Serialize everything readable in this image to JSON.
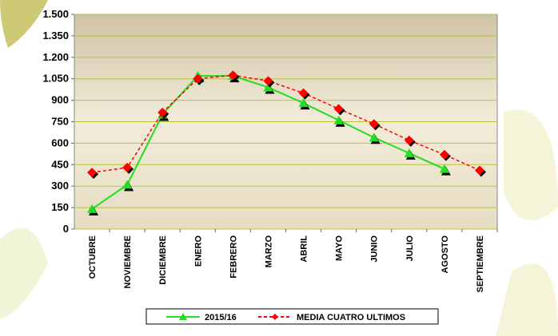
{
  "chart_data": {
    "type": "line",
    "categories": [
      "OCTUBRE",
      "NOVIEMBRE",
      "DICIEMBRE",
      "ENERO",
      "FEBRERO",
      "MARZO",
      "ABRIL",
      "MAYO",
      "JUNIO",
      "JULIO",
      "AGOSTO",
      "SEPTIEMBRE"
    ],
    "series": [
      {
        "name": "2015/16",
        "color": "#22dd22",
        "marker": "triangle",
        "dashed": false,
        "values": [
          140,
          310,
          800,
          1070,
          1070,
          990,
          880,
          760,
          640,
          530,
          420,
          null
        ]
      },
      {
        "name": "MEDIA CUATRO ULTIMOS",
        "color": "#ff0000",
        "marker": "diamond",
        "dashed": true,
        "values": [
          395,
          430,
          815,
          1050,
          1075,
          1035,
          950,
          840,
          735,
          620,
          520,
          410
        ]
      }
    ],
    "ylim": [
      0,
      1500
    ],
    "yticks": [
      0,
      150,
      300,
      450,
      600,
      750,
      900,
      {
        "value": 1050,
        "label": "1.050"
      },
      {
        "value": 1200,
        "label": "1.200"
      },
      {
        "value": 1350,
        "label": "1.350"
      },
      {
        "value": 1500,
        "label": "1.500"
      }
    ],
    "grid": true
  }
}
